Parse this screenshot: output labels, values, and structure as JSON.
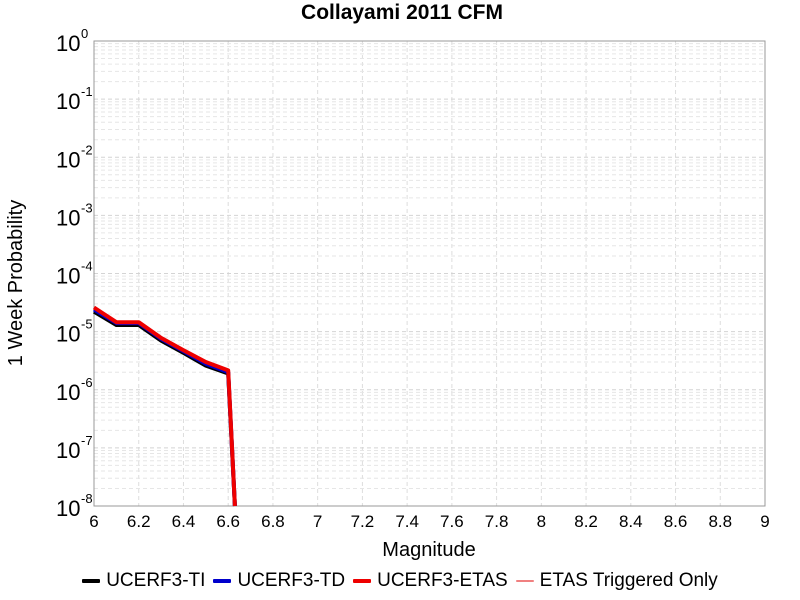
{
  "chart_data": {
    "type": "line",
    "title": "Collayami 2011 CFM",
    "xlabel": "Magnitude",
    "ylabel": "1 Week Probability",
    "xlim": [
      6,
      9
    ],
    "ylim": [
      1e-08,
      1
    ],
    "yscale": "log",
    "grid": true,
    "legend_position": "bottom",
    "x_ticks": [
      "6",
      "6.2",
      "6.4",
      "6.6",
      "6.8",
      "7",
      "7.2",
      "7.4",
      "7.6",
      "7.8",
      "8",
      "8.2",
      "8.4",
      "8.6",
      "8.8",
      "9"
    ],
    "y_tick_exponents": [
      "0",
      "-1",
      "-2",
      "-3",
      "-4",
      "-5",
      "-6",
      "-7",
      "-8"
    ],
    "y_tick_base": "10",
    "series": [
      {
        "name": "UCERF3-TI",
        "color": "#000000",
        "x": [
          6.0,
          6.1,
          6.2,
          6.3,
          6.4,
          6.5,
          6.6,
          6.63
        ],
        "y": [
          2.2e-05,
          1.3e-05,
          1.3e-05,
          7e-06,
          4.3e-06,
          2.6e-06,
          1.9e-06,
          1e-08
        ]
      },
      {
        "name": "UCERF3-TD",
        "color": "#0000cc",
        "x": [
          6.0,
          6.1,
          6.2,
          6.3,
          6.4,
          6.5,
          6.6,
          6.63
        ],
        "y": [
          2.4e-05,
          1.4e-05,
          1.4e-05,
          7.5e-06,
          4.6e-06,
          2.8e-06,
          2e-06,
          1e-08
        ]
      },
      {
        "name": "UCERF3-ETAS",
        "color": "#ee0000",
        "x": [
          6.0,
          6.1,
          6.2,
          6.3,
          6.4,
          6.5,
          6.6,
          6.63
        ],
        "y": [
          2.6e-05,
          1.45e-05,
          1.45e-05,
          7.8e-06,
          4.8e-06,
          3e-06,
          2.15e-06,
          1e-08
        ]
      },
      {
        "name": "ETAS Triggered Only",
        "color": "#f08080",
        "x": [],
        "y": []
      }
    ]
  }
}
